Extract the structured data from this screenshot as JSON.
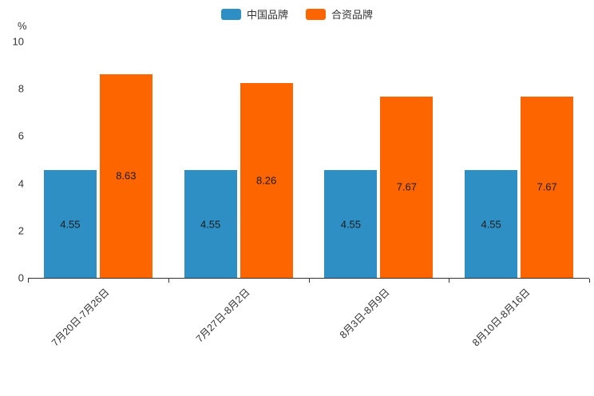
{
  "chart_data": {
    "type": "bar",
    "title": "",
    "unit_label": "%",
    "categories": [
      "7月20日-7月26日",
      "7月27日-8月2日",
      "8月3日-8月9日",
      "8月10日-8月16日"
    ],
    "series": [
      {
        "name": "中国品牌",
        "color": "#2d8fc4",
        "values": [
          4.55,
          4.55,
          4.55,
          4.55
        ]
      },
      {
        "name": "合资品牌",
        "color": "#fd6500",
        "values": [
          8.63,
          8.26,
          7.67,
          7.67
        ]
      }
    ],
    "value_labels": {
      "中国品牌": [
        "4.55",
        "4.55",
        "4.55",
        "4.55"
      ],
      "合资品牌": [
        "8.63",
        "8.26",
        "7.67",
        "7.67"
      ]
    },
    "ylim": [
      0,
      10
    ],
    "yticks": [
      0,
      2,
      4,
      6,
      8,
      10
    ],
    "legend_position": "top-center",
    "grid": false,
    "axis_color": "#333333",
    "label_color": "#1b1b1b"
  }
}
